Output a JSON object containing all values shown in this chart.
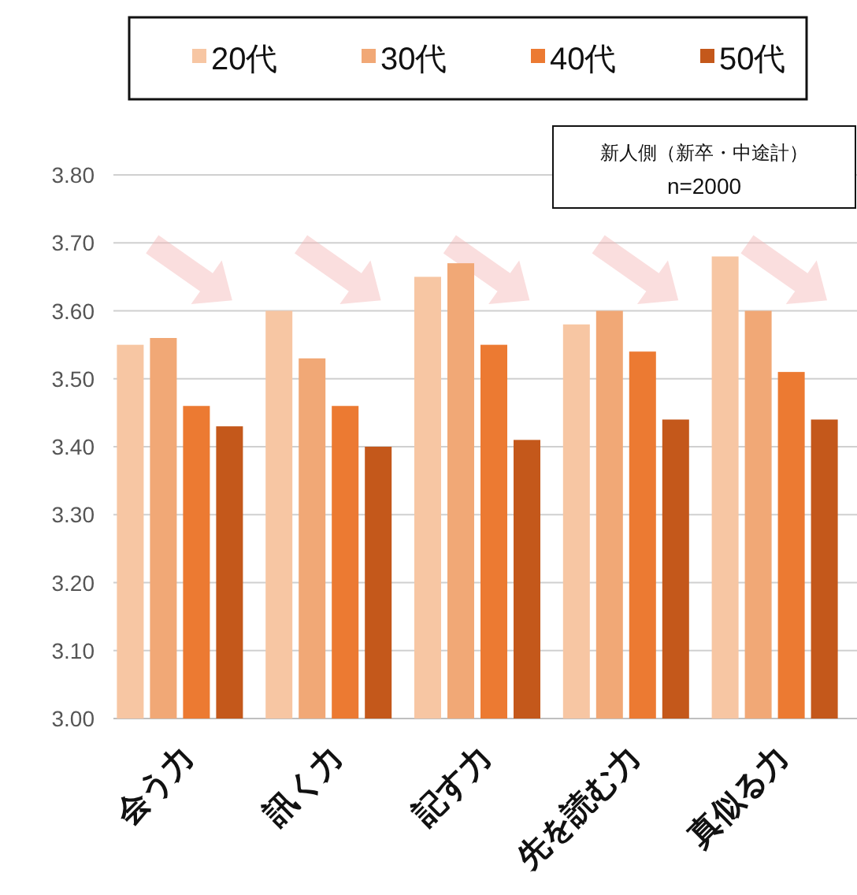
{
  "chart_data": {
    "type": "bar",
    "categories": [
      "会う力",
      "訊く力",
      "記す力",
      "先を読む力",
      "真似る力"
    ],
    "series": [
      {
        "name": "20代",
        "color": "#f7c6a3",
        "values": [
          3.55,
          3.6,
          3.65,
          3.58,
          3.68
        ]
      },
      {
        "name": "30代",
        "color": "#f1a876",
        "values": [
          3.56,
          3.53,
          3.67,
          3.6,
          3.6
        ]
      },
      {
        "name": "40代",
        "color": "#ec7a32",
        "values": [
          3.46,
          3.46,
          3.55,
          3.54,
          3.51
        ]
      },
      {
        "name": "50代",
        "color": "#c4581b",
        "values": [
          3.43,
          3.4,
          3.41,
          3.44,
          3.44
        ]
      }
    ],
    "ylim": [
      3.0,
      3.8
    ],
    "yticks": [
      {
        "value": 3.0,
        "label": "3.00"
      },
      {
        "value": 3.1,
        "label": "3.10"
      },
      {
        "value": 3.2,
        "label": "3.20"
      },
      {
        "value": 3.3,
        "label": "3.30"
      },
      {
        "value": 3.4,
        "label": "3.40"
      },
      {
        "value": 3.5,
        "label": "3.50"
      },
      {
        "value": 3.6,
        "label": "3.60"
      },
      {
        "value": 3.7,
        "label": "3.70"
      },
      {
        "value": 3.8,
        "label": "3.80"
      }
    ],
    "grid": "y",
    "legend": "top",
    "annotations": [
      "新人側（新卒・中途計）",
      "n=2000"
    ]
  }
}
